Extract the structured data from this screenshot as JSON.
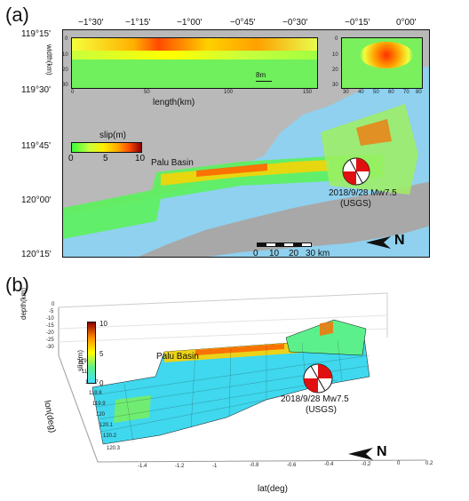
{
  "panel_a": {
    "label": "(a)",
    "top_ticks": [
      "−1°30'",
      "−1°15'",
      "−1°00'",
      "−0°45'",
      "−0°30'",
      "−0°15'",
      "0°00'"
    ],
    "left_ticks": [
      "119°15'",
      "119°30'",
      "119°45'",
      "120°00'",
      "120°15'"
    ],
    "inset1": {
      "xlabel": "length(km)",
      "ylabel": "width(km)",
      "x_ticks": [
        "0",
        "50",
        "100",
        "150"
      ],
      "y_ticks": [
        "0",
        "10",
        "20",
        "30"
      ],
      "vector_label": "8m"
    },
    "inset2": {
      "x_ticks": [
        "30",
        "40",
        "50",
        "60",
        "70",
        "80"
      ],
      "y_ticks": [
        "0",
        "10",
        "20",
        "30"
      ]
    },
    "colorbar": {
      "title": "slip(m)",
      "ticks": [
        "0",
        "5",
        "10"
      ]
    },
    "basin_label": "Palu Basin",
    "event_line1": "2018/9/28 Mw7.5",
    "event_line2": "(USGS)",
    "scale_ticks": [
      "0",
      "10",
      "20",
      "30 km"
    ],
    "north_label": "N"
  },
  "panel_b": {
    "label": "(b)",
    "zlabel": "depth(km)",
    "z_ticks": [
      "0",
      "-5",
      "-10",
      "-15",
      "-20",
      "-25",
      "-30"
    ],
    "ylabel": "lon(deg)",
    "y_ticks": [
      "119.5",
      "119.6",
      "119.7",
      "119.8",
      "119.9",
      "120",
      "120.1",
      "120.2",
      "120.3"
    ],
    "xlabel": "lat(deg)",
    "x_ticks": [
      "-1.4",
      "-1.2",
      "-1",
      "-0.8",
      "-0.6",
      "-0.4",
      "-0.2",
      "0",
      "0.2"
    ],
    "colorbar": {
      "title": "slip(m)",
      "ticks": [
        "10",
        "5",
        "0"
      ]
    },
    "basin_label": "Palu Basin",
    "event_line1": "2018/9/28 Mw7.5",
    "event_line2": "(USGS)",
    "north_label": "N"
  },
  "colors": {
    "sea": "#8fd1ef",
    "land": "#b9b9b9",
    "low_slip_a": "#5cf25c",
    "low_slip_b": "#3fd8ee",
    "high_slip": "#c80000"
  }
}
